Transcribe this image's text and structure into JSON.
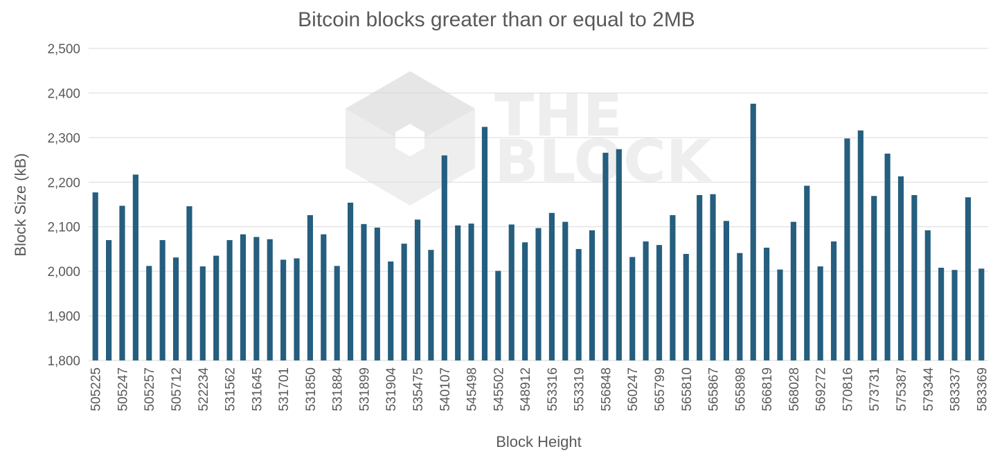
{
  "colors": {
    "bar": "#255e7e",
    "grid": "#d9d9d9",
    "text": "#595959",
    "watermark": "#eeeeee"
  },
  "watermark": {
    "line1": "THE",
    "line2": "BLOCK"
  },
  "chart_data": {
    "type": "bar",
    "title": "Bitcoin blocks greater than or equal to 2MB",
    "xlabel": "Block Height",
    "ylabel": "Block Size (kB)",
    "ylim": [
      1800,
      2500
    ],
    "yticks": [
      1800,
      1900,
      2000,
      2100,
      2200,
      2300,
      2400,
      2500
    ],
    "ytick_labels": [
      "1,800",
      "1,900",
      "2,000",
      "2,100",
      "2,200",
      "2,300",
      "2,400",
      "2,500"
    ],
    "grid": true,
    "legend": "none",
    "tick_labels": [
      "505225",
      "505247",
      "505257",
      "505712",
      "522234",
      "531562",
      "531645",
      "531701",
      "531850",
      "531884",
      "531899",
      "531904",
      "535475",
      "540107",
      "545498",
      "545502",
      "548912",
      "553316",
      "553319",
      "556848",
      "560247",
      "565799",
      "565810",
      "565867",
      "565898",
      "566819",
      "568028",
      "569272",
      "570816",
      "573731",
      "575387",
      "579344",
      "583337",
      "583369"
    ],
    "values": [
      2177,
      2070,
      2147,
      2217,
      2012,
      2070,
      2031,
      2146,
      2011,
      2035,
      2070,
      2083,
      2077,
      2072,
      2026,
      2029,
      2126,
      2083,
      2012,
      2154,
      2106,
      2098,
      2022,
      2062,
      2116,
      2048,
      2260,
      2103,
      2107,
      2324,
      2001,
      2105,
      2065,
      2097,
      2131,
      2111,
      2050,
      2092,
      2266,
      2274,
      2032,
      2067,
      2059,
      2126,
      2039,
      2171,
      2173,
      2113,
      2041,
      2376,
      2053,
      2004,
      2111,
      2192,
      2011,
      2067,
      2298,
      2316,
      2169,
      2264,
      2213,
      2171,
      2092,
      2008,
      2003,
      2166,
      2006
    ]
  }
}
